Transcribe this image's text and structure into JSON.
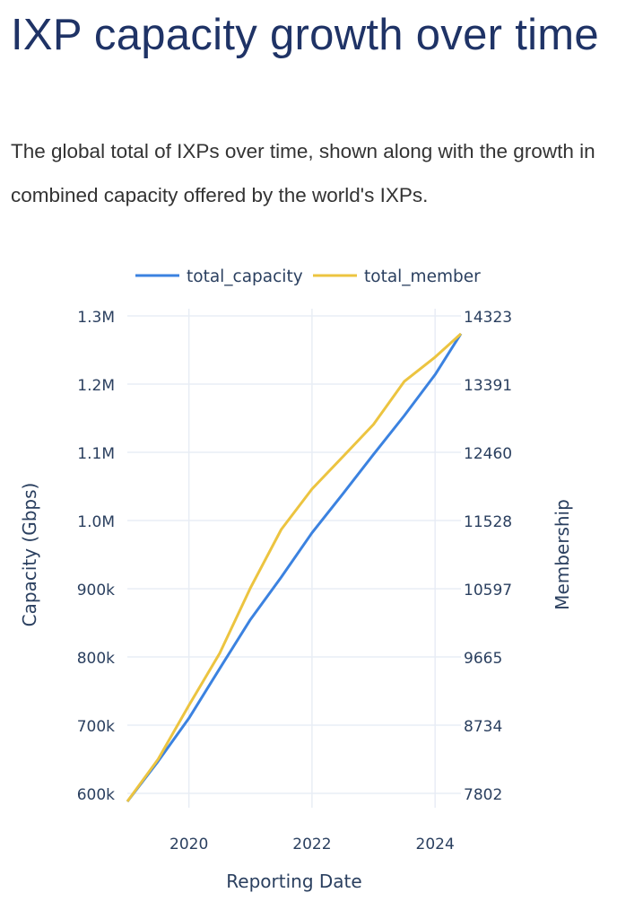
{
  "header": {
    "title": "IXP capacity growth over time",
    "subtitle": "The global total of IXPs over time, shown along with the growth in combined capacity offered by the world's IXPs."
  },
  "chart_data": {
    "type": "line",
    "xlabel": "Reporting Date",
    "ylabel": "Capacity (Gbps)",
    "y2label": "Membership",
    "xlim": [
      2019.0,
      2024.42
    ],
    "ylim": [
      600000,
      1300000
    ],
    "y2lim": [
      7802,
      14323
    ],
    "x_ticks": [
      "2020",
      "2022",
      "2024"
    ],
    "x_tick_values": [
      2020,
      2022,
      2024
    ],
    "y_ticks": [
      "600k",
      "700k",
      "800k",
      "900k",
      "1.0M",
      "1.1M",
      "1.2M",
      "1.3M"
    ],
    "y_tick_values": [
      600000,
      700000,
      800000,
      900000,
      1000000,
      1100000,
      1200000,
      1300000
    ],
    "y2_ticks": [
      "7802",
      "8734",
      "9665",
      "10597",
      "11528",
      "12460",
      "13391",
      "14323"
    ],
    "grid": true,
    "legend_position": "top",
    "x": [
      2019.0,
      2019.5,
      2020.0,
      2020.5,
      2021.0,
      2021.5,
      2022.0,
      2022.5,
      2023.0,
      2023.5,
      2024.0,
      2024.42
    ],
    "series": [
      {
        "name": "total_capacity",
        "axis": "left",
        "color": "#3b82e0",
        "values": [
          588000,
          647000,
          710000,
          783000,
          855000,
          917000,
          982000,
          1039000,
          1097000,
          1154000,
          1214000,
          1274000
        ]
      },
      {
        "name": "total_member",
        "axis": "right",
        "color": "#ecc440",
        "values": [
          7692,
          8268,
          9003,
          9715,
          10609,
          11406,
          11958,
          12399,
          12841,
          13429,
          13760,
          14079
        ]
      }
    ]
  }
}
